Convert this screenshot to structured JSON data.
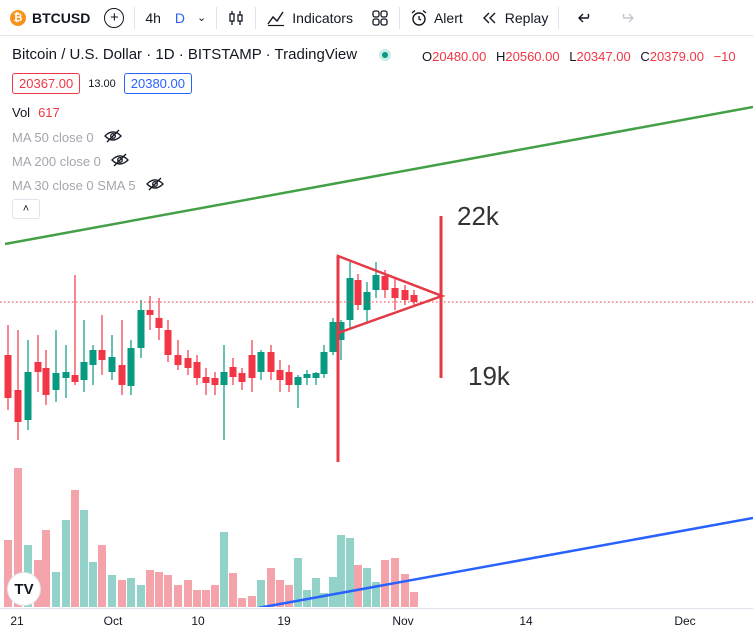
{
  "toolbar": {
    "symbol": "BTCUSD",
    "coin_glyph": "₿",
    "plus": "+",
    "timeframe_4h": "4h",
    "timeframe_d": "D",
    "chevron": "⌄",
    "indicators_label": "Indicators",
    "alert_label": "Alert",
    "replay_label": "Replay"
  },
  "legend": {
    "title": "Bitcoin / U.S. Dollar · 1D · BITSTAMP · TradingView",
    "ohlc": {
      "o_label": "O",
      "o_value": "20480.00",
      "h_label": "H",
      "h_value": "20560.00",
      "l_label": "L",
      "l_value": "20347.00",
      "c_label": "C",
      "c_value": "20379.00",
      "change": "−10"
    }
  },
  "prices": {
    "sell": "20367.00",
    "spread": "13.00",
    "buy": "20380.00"
  },
  "indicators": {
    "vol_label": "Vol",
    "vol_value": "617",
    "ma50": "MA 50 close 0",
    "ma200": "MA 200 close 0",
    "ma30": "MA 30 close 0 SMA 5",
    "collapse": "˄"
  },
  "annotations": {
    "upper": "22k",
    "lower": "19k"
  },
  "logo": "TV",
  "time_axis": [
    "21",
    "Oct",
    "10",
    "19",
    "Nov",
    "14",
    "Dec"
  ],
  "colors": {
    "up": "#089981",
    "down": "#f23645",
    "accent": "#2962ff",
    "green_line": "#43a047",
    "blue_line": "#2962ff",
    "drawing": "#e53945"
  }
}
